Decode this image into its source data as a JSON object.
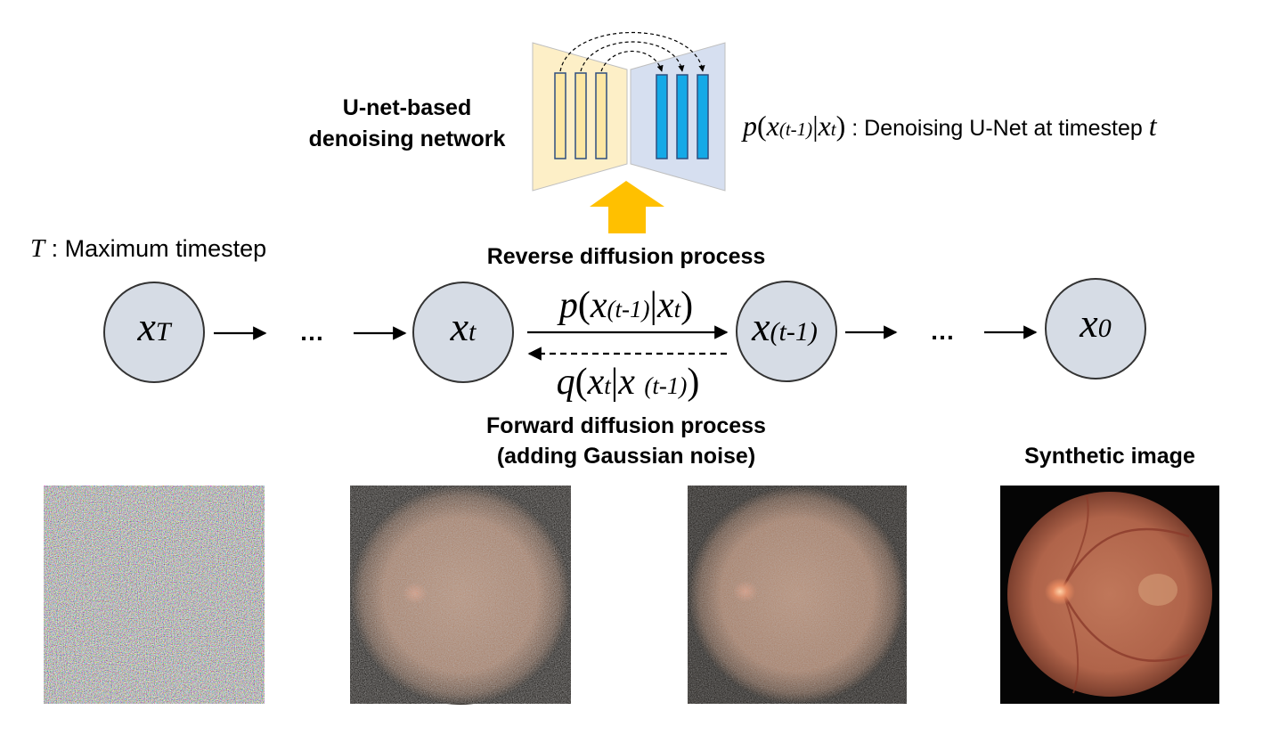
{
  "unet": {
    "label_line1": "U-net-based",
    "label_line2": "denoising network",
    "eq": {
      "p": "p",
      "lparen": "(",
      "x1": "x",
      "sub1": "(t-1)",
      "bar": "|",
      "x2": "x",
      "sub2": "t",
      "rparen": ")",
      "colon": " : ",
      "desc": "Denoising U-Net at timestep ",
      "t": "t"
    },
    "encoder_color": "#fdefc7",
    "decoder_color": "#d6dff0",
    "encoder_block_color": "#fde7a3",
    "decoder_block_color": "#14a9e7",
    "arrow_color": "#ffc000"
  },
  "legend": {
    "T": "T",
    "colon": " : ",
    "text": "Maximum timestep"
  },
  "reverse": {
    "label": "Reverse diffusion process",
    "eq": {
      "p": "p",
      "lparen": "(",
      "x1": "x",
      "sub1": "(t-1)",
      "bar": "|",
      "x2": "x",
      "sub2": "t",
      "rparen": ")"
    }
  },
  "forward": {
    "label_line1": "Forward diffusion process",
    "label_line2": "(adding Gaussian noise)",
    "eq": {
      "q": "q",
      "lparen": "(",
      "x1": "x",
      "sub1": "t",
      "bar": "|",
      "x2": "x ",
      "sub2": "(t-1)",
      "rparen": ")"
    }
  },
  "nodes": [
    {
      "x": "x",
      "sub": "T"
    },
    {
      "x": "x",
      "sub": "t"
    },
    {
      "x": "x",
      "sub": "(t-1)"
    },
    {
      "x": "x",
      "sub": "0"
    }
  ],
  "ellipsis": "…",
  "node_fill": "#d6dce5",
  "synthetic_label": "Synthetic image"
}
